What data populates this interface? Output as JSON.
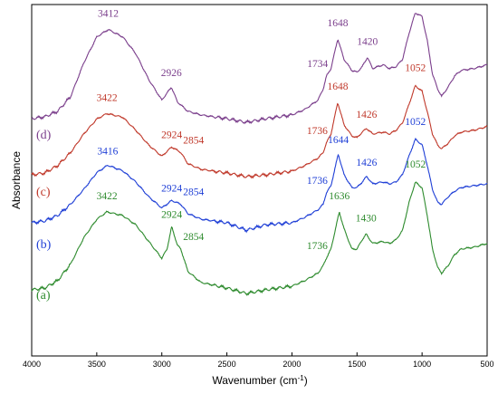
{
  "chart_data": {
    "type": "line",
    "title": "",
    "xlabel": "Wavenumber (cm",
    "xlabel_sup": "-1",
    "xlabel_close": ")",
    "ylabel": "Absorbance",
    "xlim": [
      4000,
      500
    ],
    "x_reversed": true,
    "x_ticks": [
      4000,
      3500,
      3000,
      2500,
      2000,
      1500,
      1000,
      500
    ],
    "y_ticks_shown": false,
    "grid": false,
    "series": [
      {
        "name": "(d)",
        "color": "#7B3F8C",
        "points": [
          [
            4000,
            0.0
          ],
          [
            3900,
            0.01
          ],
          [
            3800,
            0.04
          ],
          [
            3700,
            0.12
          ],
          [
            3600,
            0.3
          ],
          [
            3500,
            0.44
          ],
          [
            3412,
            0.48
          ],
          [
            3300,
            0.44
          ],
          [
            3200,
            0.35
          ],
          [
            3100,
            0.21
          ],
          [
            3000,
            0.1
          ],
          [
            2926,
            0.17
          ],
          [
            2880,
            0.09
          ],
          [
            2800,
            0.04
          ],
          [
            2700,
            0.02
          ],
          [
            2500,
            0.0
          ],
          [
            2350,
            -0.02
          ],
          [
            2200,
            0.0
          ],
          [
            2000,
            0.02
          ],
          [
            1900,
            0.05
          ],
          [
            1800,
            0.1
          ],
          [
            1760,
            0.16
          ],
          [
            1734,
            0.23
          ],
          [
            1700,
            0.27
          ],
          [
            1648,
            0.43
          ],
          [
            1600,
            0.32
          ],
          [
            1540,
            0.26
          ],
          [
            1500,
            0.25
          ],
          [
            1460,
            0.28
          ],
          [
            1420,
            0.33
          ],
          [
            1380,
            0.27
          ],
          [
            1300,
            0.29
          ],
          [
            1250,
            0.27
          ],
          [
            1200,
            0.28
          ],
          [
            1150,
            0.32
          ],
          [
            1100,
            0.46
          ],
          [
            1052,
            0.57
          ],
          [
            1000,
            0.55
          ],
          [
            960,
            0.42
          ],
          [
            920,
            0.24
          ],
          [
            880,
            0.16
          ],
          [
            850,
            0.12
          ],
          [
            800,
            0.17
          ],
          [
            750,
            0.23
          ],
          [
            700,
            0.26
          ],
          [
            600,
            0.27
          ],
          [
            500,
            0.29
          ]
        ]
      },
      {
        "name": "(c)",
        "color": "#C0392B",
        "points": [
          [
            4000,
            0.0
          ],
          [
            3900,
            0.01
          ],
          [
            3800,
            0.05
          ],
          [
            3700,
            0.12
          ],
          [
            3600,
            0.22
          ],
          [
            3500,
            0.3
          ],
          [
            3422,
            0.33
          ],
          [
            3300,
            0.31
          ],
          [
            3200,
            0.24
          ],
          [
            3100,
            0.16
          ],
          [
            3000,
            0.1
          ],
          [
            2924,
            0.15
          ],
          [
            2854,
            0.12
          ],
          [
            2800,
            0.06
          ],
          [
            2700,
            0.03
          ],
          [
            2500,
            0.01
          ],
          [
            2350,
            -0.01
          ],
          [
            2200,
            0.0
          ],
          [
            2000,
            0.02
          ],
          [
            1900,
            0.05
          ],
          [
            1800,
            0.09
          ],
          [
            1760,
            0.12
          ],
          [
            1736,
            0.17
          ],
          [
            1700,
            0.22
          ],
          [
            1648,
            0.39
          ],
          [
            1600,
            0.27
          ],
          [
            1540,
            0.21
          ],
          [
            1500,
            0.2
          ],
          [
            1460,
            0.23
          ],
          [
            1426,
            0.25
          ],
          [
            1380,
            0.22
          ],
          [
            1300,
            0.23
          ],
          [
            1250,
            0.22
          ],
          [
            1200,
            0.24
          ],
          [
            1150,
            0.28
          ],
          [
            1100,
            0.38
          ],
          [
            1052,
            0.48
          ],
          [
            1000,
            0.45
          ],
          [
            960,
            0.34
          ],
          [
            920,
            0.22
          ],
          [
            880,
            0.16
          ],
          [
            850,
            0.14
          ],
          [
            800,
            0.17
          ],
          [
            750,
            0.21
          ],
          [
            700,
            0.23
          ],
          [
            600,
            0.24
          ],
          [
            500,
            0.26
          ]
        ]
      },
      {
        "name": "(b)",
        "color": "#1F3FD6",
        "points": [
          [
            4000,
            0.0
          ],
          [
            3900,
            0.01
          ],
          [
            3800,
            0.04
          ],
          [
            3700,
            0.1
          ],
          [
            3600,
            0.18
          ],
          [
            3500,
            0.27
          ],
          [
            3416,
            0.31
          ],
          [
            3300,
            0.28
          ],
          [
            3200,
            0.22
          ],
          [
            3100,
            0.14
          ],
          [
            3000,
            0.08
          ],
          [
            2924,
            0.12
          ],
          [
            2854,
            0.1
          ],
          [
            2800,
            0.05
          ],
          [
            2700,
            0.02
          ],
          [
            2500,
            0.0
          ],
          [
            2350,
            -0.04
          ],
          [
            2200,
            -0.01
          ],
          [
            2000,
            0.0
          ],
          [
            1900,
            0.03
          ],
          [
            1800,
            0.07
          ],
          [
            1760,
            0.1
          ],
          [
            1736,
            0.16
          ],
          [
            1700,
            0.2
          ],
          [
            1644,
            0.37
          ],
          [
            1600,
            0.26
          ],
          [
            1540,
            0.19
          ],
          [
            1500,
            0.19
          ],
          [
            1460,
            0.22
          ],
          [
            1426,
            0.25
          ],
          [
            1380,
            0.21
          ],
          [
            1300,
            0.22
          ],
          [
            1250,
            0.21
          ],
          [
            1200,
            0.22
          ],
          [
            1150,
            0.26
          ],
          [
            1100,
            0.36
          ],
          [
            1052,
            0.45
          ],
          [
            1000,
            0.42
          ],
          [
            960,
            0.31
          ],
          [
            920,
            0.18
          ],
          [
            880,
            0.11
          ],
          [
            850,
            0.1
          ],
          [
            800,
            0.14
          ],
          [
            750,
            0.17
          ],
          [
            700,
            0.19
          ],
          [
            600,
            0.2
          ],
          [
            500,
            0.21
          ]
        ]
      },
      {
        "name": "(a)",
        "color": "#2E8B2E",
        "points": [
          [
            4000,
            0.0
          ],
          [
            3900,
            0.01
          ],
          [
            3800,
            0.05
          ],
          [
            3700,
            0.14
          ],
          [
            3600,
            0.28
          ],
          [
            3500,
            0.38
          ],
          [
            3422,
            0.42
          ],
          [
            3300,
            0.4
          ],
          [
            3200,
            0.35
          ],
          [
            3100,
            0.26
          ],
          [
            3000,
            0.17
          ],
          [
            2960,
            0.22
          ],
          [
            2924,
            0.34
          ],
          [
            2880,
            0.24
          ],
          [
            2854,
            0.22
          ],
          [
            2800,
            0.1
          ],
          [
            2700,
            0.04
          ],
          [
            2500,
            0.01
          ],
          [
            2350,
            -0.02
          ],
          [
            2200,
            0.0
          ],
          [
            2000,
            0.02
          ],
          [
            1900,
            0.05
          ],
          [
            1800,
            0.09
          ],
          [
            1760,
            0.13
          ],
          [
            1736,
            0.17
          ],
          [
            1700,
            0.22
          ],
          [
            1636,
            0.42
          ],
          [
            1600,
            0.33
          ],
          [
            1540,
            0.22
          ],
          [
            1500,
            0.22
          ],
          [
            1460,
            0.27
          ],
          [
            1430,
            0.3
          ],
          [
            1380,
            0.25
          ],
          [
            1300,
            0.26
          ],
          [
            1250,
            0.25
          ],
          [
            1200,
            0.27
          ],
          [
            1150,
            0.32
          ],
          [
            1100,
            0.47
          ],
          [
            1052,
            0.58
          ],
          [
            1000,
            0.55
          ],
          [
            960,
            0.4
          ],
          [
            920,
            0.22
          ],
          [
            880,
            0.12
          ],
          [
            850,
            0.09
          ],
          [
            800,
            0.13
          ],
          [
            750,
            0.19
          ],
          [
            700,
            0.22
          ],
          [
            600,
            0.23
          ],
          [
            500,
            0.25
          ]
        ]
      }
    ],
    "peak_labels": [
      {
        "series": 0,
        "text": "3412",
        "x": 3412
      },
      {
        "series": 0,
        "text": "2926",
        "x": 2926
      },
      {
        "series": 0,
        "text": "1734",
        "x": 1734
      },
      {
        "series": 0,
        "text": "1648",
        "x": 1648
      },
      {
        "series": 0,
        "text": "1420",
        "x": 1420
      },
      {
        "series": 0,
        "text": "1052",
        "x": 1052
      },
      {
        "series": 1,
        "text": "3422",
        "x": 3422
      },
      {
        "series": 1,
        "text": "2924",
        "x": 2924
      },
      {
        "series": 1,
        "text": "2854",
        "x": 2854
      },
      {
        "series": 1,
        "text": "1736",
        "x": 1736
      },
      {
        "series": 1,
        "text": "1648",
        "x": 1648
      },
      {
        "series": 1,
        "text": "1426",
        "x": 1426
      },
      {
        "series": 1,
        "text": "1052",
        "x": 1052
      },
      {
        "series": 2,
        "text": "3416",
        "x": 3416
      },
      {
        "series": 2,
        "text": "2924",
        "x": 2924
      },
      {
        "series": 2,
        "text": "2854",
        "x": 2854
      },
      {
        "series": 2,
        "text": "1736",
        "x": 1736
      },
      {
        "series": 2,
        "text": "1644",
        "x": 1644
      },
      {
        "series": 2,
        "text": "1426",
        "x": 1426
      },
      {
        "series": 2,
        "text": "1052",
        "x": 1052
      },
      {
        "series": 3,
        "text": "3422",
        "x": 3422
      },
      {
        "series": 3,
        "text": "2924",
        "x": 2924
      },
      {
        "series": 3,
        "text": "2854",
        "x": 2854
      },
      {
        "series": 3,
        "text": "1736",
        "x": 1736
      },
      {
        "series": 3,
        "text": "1636",
        "x": 1636
      },
      {
        "series": 3,
        "text": "1430",
        "x": 1430
      },
      {
        "series": 3,
        "text": "1052",
        "x": 1052
      }
    ]
  }
}
